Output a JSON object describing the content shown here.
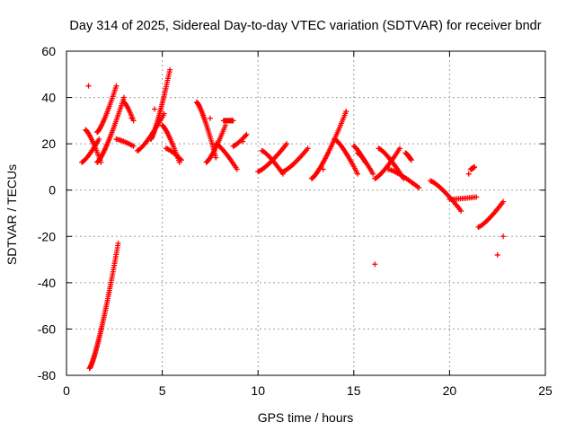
{
  "chart_data": {
    "type": "scatter",
    "title": "Day 314 of 2025, Sidereal Day-to-day VTEC variation (SDTVAR) for receiver bndr",
    "xlabel": "GPS time / hours",
    "ylabel": "SDTVAR / TECUs",
    "xlim": [
      0,
      25
    ],
    "ylim": [
      -80,
      60
    ],
    "xticks": [
      0,
      5,
      10,
      15,
      20,
      25
    ],
    "yticks": [
      -80,
      -60,
      -40,
      -20,
      0,
      20,
      40,
      60
    ],
    "grid": true,
    "marker": "+",
    "series_color": "#ff0000",
    "arcs": [
      {
        "name": "arc-1a",
        "x0": 0.8,
        "x1": 1.7,
        "y0": 12,
        "y1": 22
      },
      {
        "name": "arc-1b",
        "x0": 1.6,
        "x1": 2.6,
        "y0": 25,
        "y1": 45
      },
      {
        "name": "arc-1c",
        "x0": 1.0,
        "x1": 1.8,
        "y0": 26,
        "y1": 12
      },
      {
        "name": "arc-2",
        "x0": 1.2,
        "x1": 2.7,
        "y0": -77,
        "y1": -23
      },
      {
        "name": "arc-3a",
        "x0": 1.6,
        "x1": 3.0,
        "y0": 12,
        "y1": 40
      },
      {
        "name": "arc-3b",
        "x0": 2.6,
        "x1": 3.5,
        "y0": 22,
        "y1": 19
      },
      {
        "name": "arc-3c",
        "x0": 3.0,
        "x1": 3.5,
        "y0": 38,
        "y1": 30
      },
      {
        "name": "arc-4a",
        "x0": 3.7,
        "x1": 5.1,
        "y0": 17,
        "y1": 33
      },
      {
        "name": "arc-4b",
        "x0": 4.4,
        "x1": 5.4,
        "y0": 22,
        "y1": 52
      },
      {
        "name": "arc-4c",
        "x0": 5.0,
        "x1": 5.9,
        "y0": 28,
        "y1": 12
      },
      {
        "name": "arc-4d",
        "x0": 5.2,
        "x1": 6.0,
        "y0": 18,
        "y1": 13
      },
      {
        "name": "arc-5a",
        "x0": 6.8,
        "x1": 7.8,
        "y0": 38,
        "y1": 14
      },
      {
        "name": "arc-5b",
        "x0": 7.3,
        "x1": 8.3,
        "y0": 12,
        "y1": 28
      },
      {
        "name": "arc-5c",
        "x0": 7.8,
        "x1": 8.9,
        "y0": 20,
        "y1": 9
      },
      {
        "name": "arc-5d",
        "x0": 8.2,
        "x1": 8.7,
        "y0": 30,
        "y1": 30
      },
      {
        "name": "arc-6",
        "x0": 8.7,
        "x1": 9.4,
        "y0": 19,
        "y1": 24
      },
      {
        "name": "arc-7a",
        "x0": 10.0,
        "x1": 11.5,
        "y0": 8,
        "y1": 20
      },
      {
        "name": "arc-7b",
        "x0": 10.2,
        "x1": 11.3,
        "y0": 17,
        "y1": 7
      },
      {
        "name": "arc-7c",
        "x0": 11.3,
        "x1": 12.6,
        "y0": 8,
        "y1": 18
      },
      {
        "name": "arc-8a",
        "x0": 12.8,
        "x1": 14.6,
        "y0": 5,
        "y1": 34
      },
      {
        "name": "arc-8b",
        "x0": 14.0,
        "x1": 15.2,
        "y0": 22,
        "y1": 7
      },
      {
        "name": "arc-8c",
        "x0": 15.0,
        "x1": 15.6,
        "y0": 19,
        "y1": 12
      },
      {
        "name": "arc-9a",
        "x0": 15.2,
        "x1": 16.0,
        "y0": 16,
        "y1": 7
      },
      {
        "name": "arc-9b",
        "x0": 16.1,
        "x1": 17.4,
        "y0": 5,
        "y1": 18
      },
      {
        "name": "arc-9c",
        "x0": 16.3,
        "x1": 17.6,
        "y0": 18,
        "y1": 5
      },
      {
        "name": "arc-9d",
        "x0": 16.8,
        "x1": 18.4,
        "y0": 9,
        "y1": 1
      },
      {
        "name": "arc-9e",
        "x0": 17.7,
        "x1": 18.0,
        "y0": 16,
        "y1": 13
      },
      {
        "name": "arc-10a",
        "x0": 19.0,
        "x1": 20.6,
        "y0": 4,
        "y1": -9
      },
      {
        "name": "arc-10b",
        "x0": 20.0,
        "x1": 21.4,
        "y0": -4,
        "y1": -3
      },
      {
        "name": "arc-10c",
        "x0": 21.1,
        "x1": 21.3,
        "y0": 9,
        "y1": 10
      },
      {
        "name": "arc-11",
        "x0": 21.5,
        "x1": 22.8,
        "y0": -16,
        "y1": -5
      }
    ],
    "isolated_points": [
      {
        "x": 1.15,
        "y": 45
      },
      {
        "x": 3.4,
        "y": 31
      },
      {
        "x": 4.6,
        "y": 35
      },
      {
        "x": 7.5,
        "y": 31
      },
      {
        "x": 9.2,
        "y": 21
      },
      {
        "x": 13.4,
        "y": 9
      },
      {
        "x": 16.1,
        "y": -32
      },
      {
        "x": 22.5,
        "y": -28
      },
      {
        "x": 22.8,
        "y": -20
      },
      {
        "x": 21.0,
        "y": 7
      }
    ]
  }
}
